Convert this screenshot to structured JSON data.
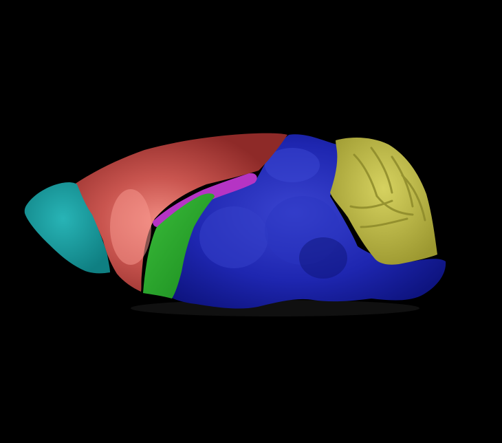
{
  "background_color": "#000000",
  "regions": [
    {
      "name": "olfactory-bulb",
      "color": "#1a9ea0"
    },
    {
      "name": "cerebral-cortex",
      "color": "#c0504d"
    },
    {
      "name": "hippocampal-strip",
      "color": "#b030c0"
    },
    {
      "name": "striatum",
      "color": "#2aa32a"
    },
    {
      "name": "brainstem",
      "color": "#1a22b0"
    },
    {
      "name": "cerebellum",
      "color": "#b8b440"
    }
  ]
}
